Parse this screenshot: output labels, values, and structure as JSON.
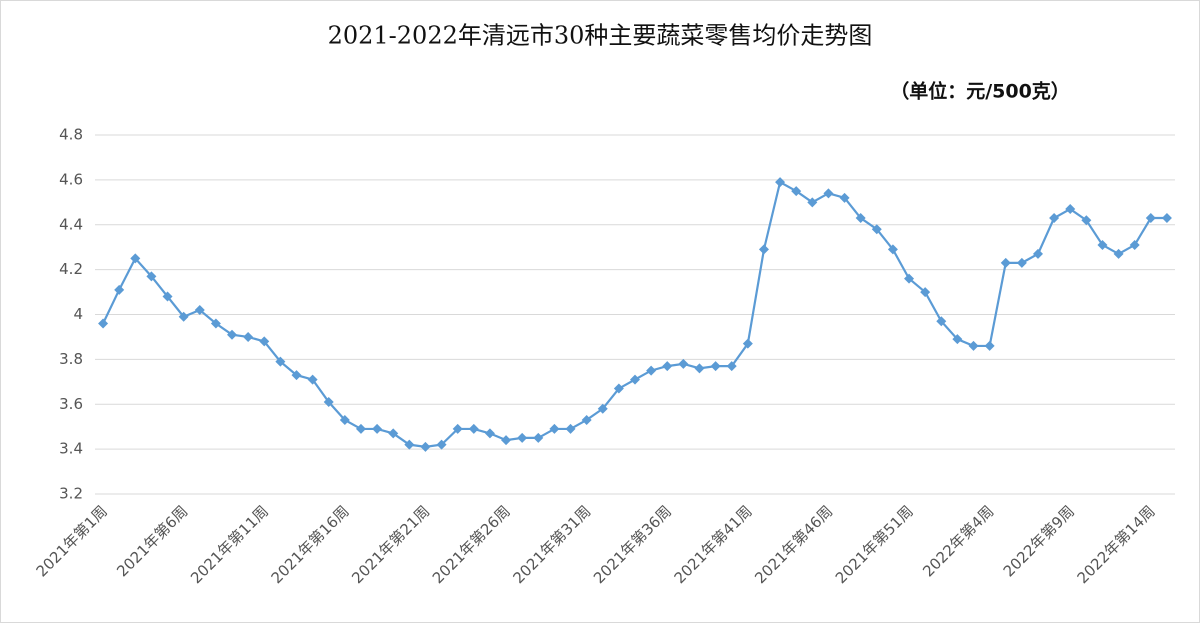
{
  "chart_data": {
    "type": "line",
    "title": "2021-2022年清远市30种主要蔬菜零售均价走势图",
    "subtitle": "（单位：元/500克）",
    "categories": [
      "2021年第1周",
      null,
      null,
      null,
      null,
      "2021年第6周",
      null,
      null,
      null,
      null,
      "2021年第11周",
      null,
      null,
      null,
      null,
      "2021年第16周",
      null,
      null,
      null,
      null,
      "2021年第21周",
      null,
      null,
      null,
      null,
      "2021年第26周",
      null,
      null,
      null,
      null,
      "2021年第31周",
      null,
      null,
      null,
      null,
      "2021年第36周",
      null,
      null,
      null,
      null,
      "2021年第41周",
      null,
      null,
      null,
      null,
      "2021年第46周",
      null,
      null,
      null,
      null,
      "2021年第51周",
      null,
      null,
      null,
      null,
      "2022年第4周",
      null,
      null,
      null,
      null,
      "2022年第9周",
      null,
      null,
      null,
      null,
      "2022年第14周",
      null
    ],
    "series": [
      {
        "color": "#5b9bd5",
        "values": [
          3.96,
          4.11,
          4.25,
          4.17,
          4.08,
          3.99,
          4.02,
          3.96,
          3.91,
          3.9,
          3.88,
          3.79,
          3.73,
          3.71,
          3.61,
          3.53,
          3.49,
          3.49,
          3.47,
          3.42,
          3.41,
          3.42,
          3.49,
          3.49,
          3.47,
          3.44,
          3.45,
          3.45,
          3.49,
          3.49,
          3.53,
          3.58,
          3.67,
          3.71,
          3.75,
          3.77,
          3.78,
          3.76,
          3.77,
          3.77,
          3.87,
          4.29,
          4.59,
          4.55,
          4.5,
          4.54,
          4.52,
          4.43,
          4.38,
          4.29,
          4.16,
          4.1,
          3.97,
          3.89,
          3.86,
          3.86,
          4.23,
          4.23,
          4.27,
          4.43,
          4.47,
          4.42,
          4.31,
          4.27,
          4.31,
          4.43,
          4.43
        ]
      }
    ],
    "ylim": [
      3.2,
      4.8
    ],
    "yticks": [
      3.2,
      3.4,
      3.6,
      3.8,
      4,
      4.2,
      4.4,
      4.6,
      4.8
    ],
    "grid": true
  }
}
